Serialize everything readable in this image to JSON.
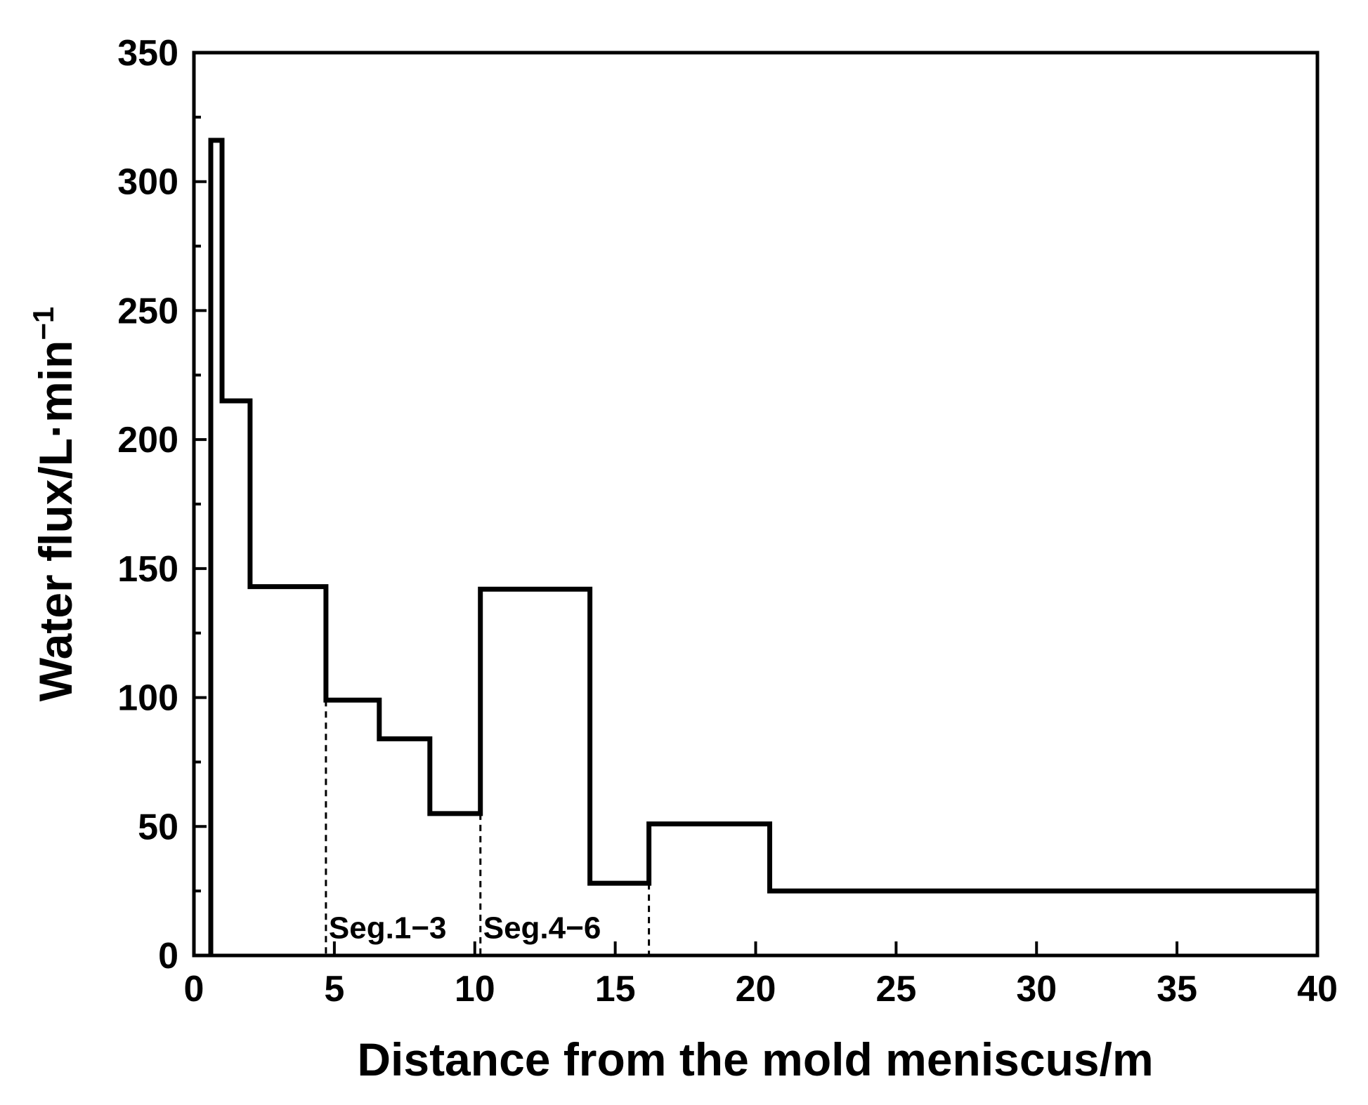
{
  "chart_data": {
    "type": "line",
    "step": true,
    "xlabel": "Distance from the mold meniscus/m",
    "ylabel_main": "Water flux/L·min",
    "ylabel_sup": "−1",
    "xlim": [
      0,
      40
    ],
    "ylim": [
      0,
      350
    ],
    "x_ticks": [
      "0",
      "5",
      "10",
      "15",
      "20",
      "25",
      "30",
      "35",
      "40"
    ],
    "y_ticks": [
      "0",
      "50",
      "100",
      "150",
      "200",
      "250",
      "300",
      "350"
    ],
    "grid": false,
    "series": [
      {
        "color": "#000000",
        "x": [
          0.6,
          0.6,
          1.0,
          1.0,
          2.0,
          2.0,
          4.7,
          4.7,
          6.6,
          6.6,
          8.4,
          8.4,
          10.2,
          10.2,
          14.1,
          14.1,
          16.2,
          16.2,
          20.5,
          20.5,
          40.0
        ],
        "y": [
          0,
          316,
          316,
          215,
          215,
          143,
          143,
          99,
          99,
          84,
          84,
          55,
          55,
          142,
          142,
          28,
          28,
          51,
          51,
          25,
          25
        ]
      }
    ],
    "reference_lines": [
      {
        "x": 4.7,
        "y_top": 99
      },
      {
        "x": 10.2,
        "y_top": 55
      },
      {
        "x": 16.2,
        "y_top": 28
      }
    ],
    "annotations": [
      {
        "text": "Seg.1−3",
        "x": 4.7,
        "y": 10
      },
      {
        "text": "Seg.4−6",
        "x": 10.2,
        "y": 10
      }
    ]
  }
}
